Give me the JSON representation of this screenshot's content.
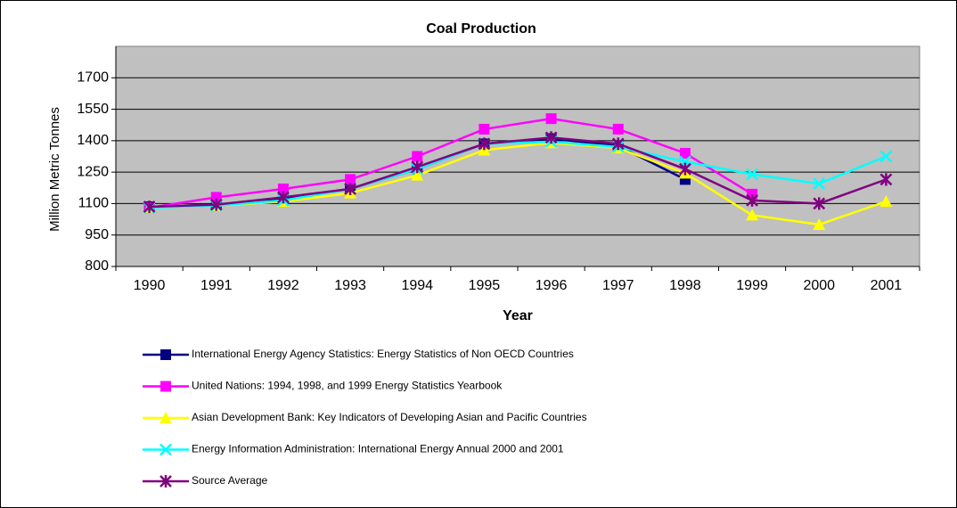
{
  "chart_data": {
    "type": "line",
    "title": "Coal Production",
    "xlabel": "Year",
    "ylabel": "Million Metric Tonnes",
    "categories": [
      "1990",
      "1991",
      "1992",
      "1993",
      "1994",
      "1995",
      "1996",
      "1997",
      "1998",
      "1999",
      "2000",
      "2001"
    ],
    "ylim": [
      800,
      1850
    ],
    "yticks": [
      800,
      950,
      1100,
      1250,
      1400,
      1550,
      1700
    ],
    "grid": true,
    "legend": "bottom",
    "series": [
      {
        "name": "International Energy Agency Statistics: Energy Statistics of Non OECD Countries",
        "color": "#000080",
        "marker": "square",
        "values": [
          1085,
          1095,
          1125,
          1170,
          1265,
          1385,
          1410,
          1375,
          1215,
          null,
          null,
          null
        ]
      },
      {
        "name": "United Nations: 1994, 1998, and 1999 Energy Statistics Yearbook",
        "color": "#ff00ff",
        "marker": "square",
        "values": [
          1080,
          1130,
          1170,
          1215,
          1325,
          1455,
          1505,
          1455,
          1340,
          1145,
          null,
          null
        ]
      },
      {
        "name": "Asian Development Bank: Key Indicators of Developing Asian and Pacific Countries",
        "color": "#ffff00",
        "marker": "triangle",
        "values": [
          1080,
          1090,
          1110,
          1150,
          1235,
          1355,
          1390,
          1365,
          1245,
          1045,
          1000,
          1110
        ]
      },
      {
        "name": "Energy Information Administration: International Energy Annual 2000 and 2001",
        "color": "#00ffff",
        "marker": "x",
        "values": [
          1080,
          1090,
          1115,
          1170,
          1265,
          1385,
          1395,
          1370,
          1300,
          1240,
          1195,
          1325
        ]
      },
      {
        "name": "Source Average",
        "color": "#800080",
        "marker": "asterisk",
        "values": [
          1085,
          1095,
          1130,
          1170,
          1275,
          1385,
          1415,
          1385,
          1265,
          1115,
          1100,
          1215
        ]
      }
    ]
  }
}
